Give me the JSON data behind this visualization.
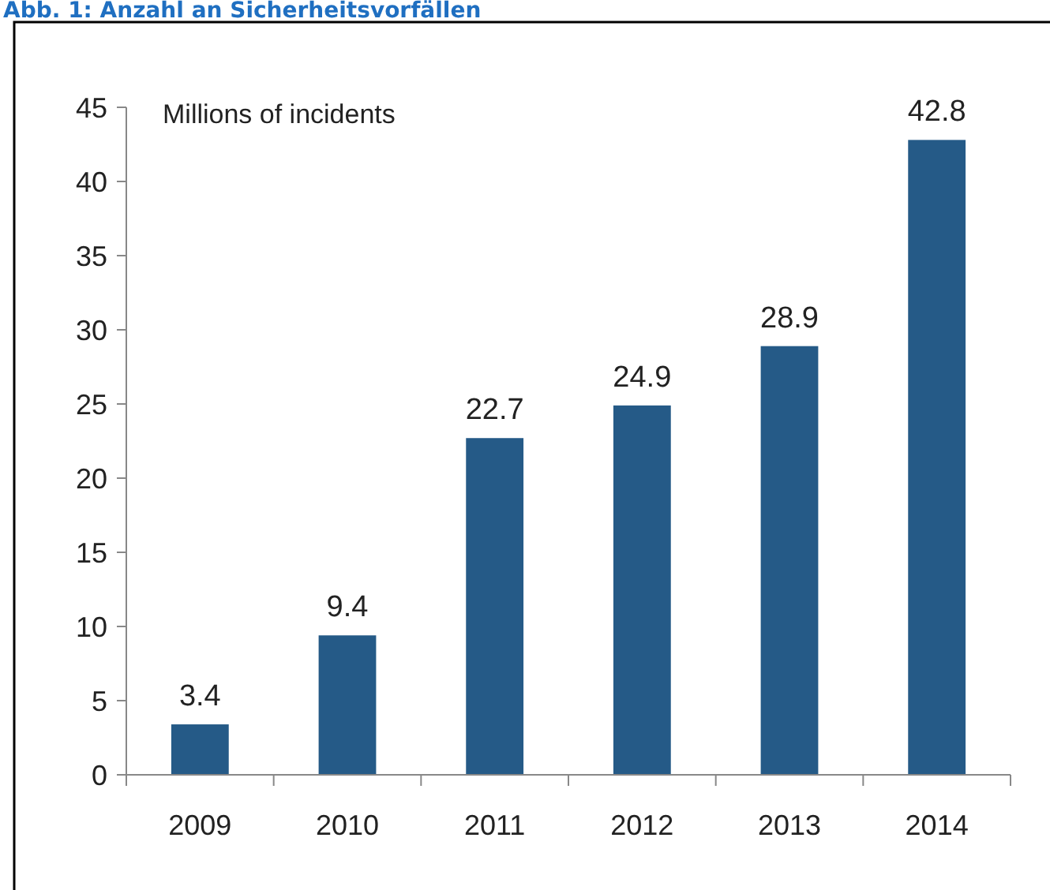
{
  "chart_data": {
    "type": "bar",
    "title": "Abb. 1: Anzahl an Sicherheitsvorfällen",
    "ylabel": "Millions of incidents",
    "categories": [
      "2009",
      "2010",
      "2011",
      "2012",
      "2013",
      "2014"
    ],
    "values": [
      3.4,
      9.4,
      22.7,
      24.9,
      28.9,
      42.8
    ],
    "color": "#255a87",
    "ylim": [
      0,
      45
    ],
    "yticks": [
      0,
      5,
      10,
      15,
      20,
      25,
      30,
      35,
      40,
      45
    ],
    "grid": false,
    "data_labels": true
  }
}
